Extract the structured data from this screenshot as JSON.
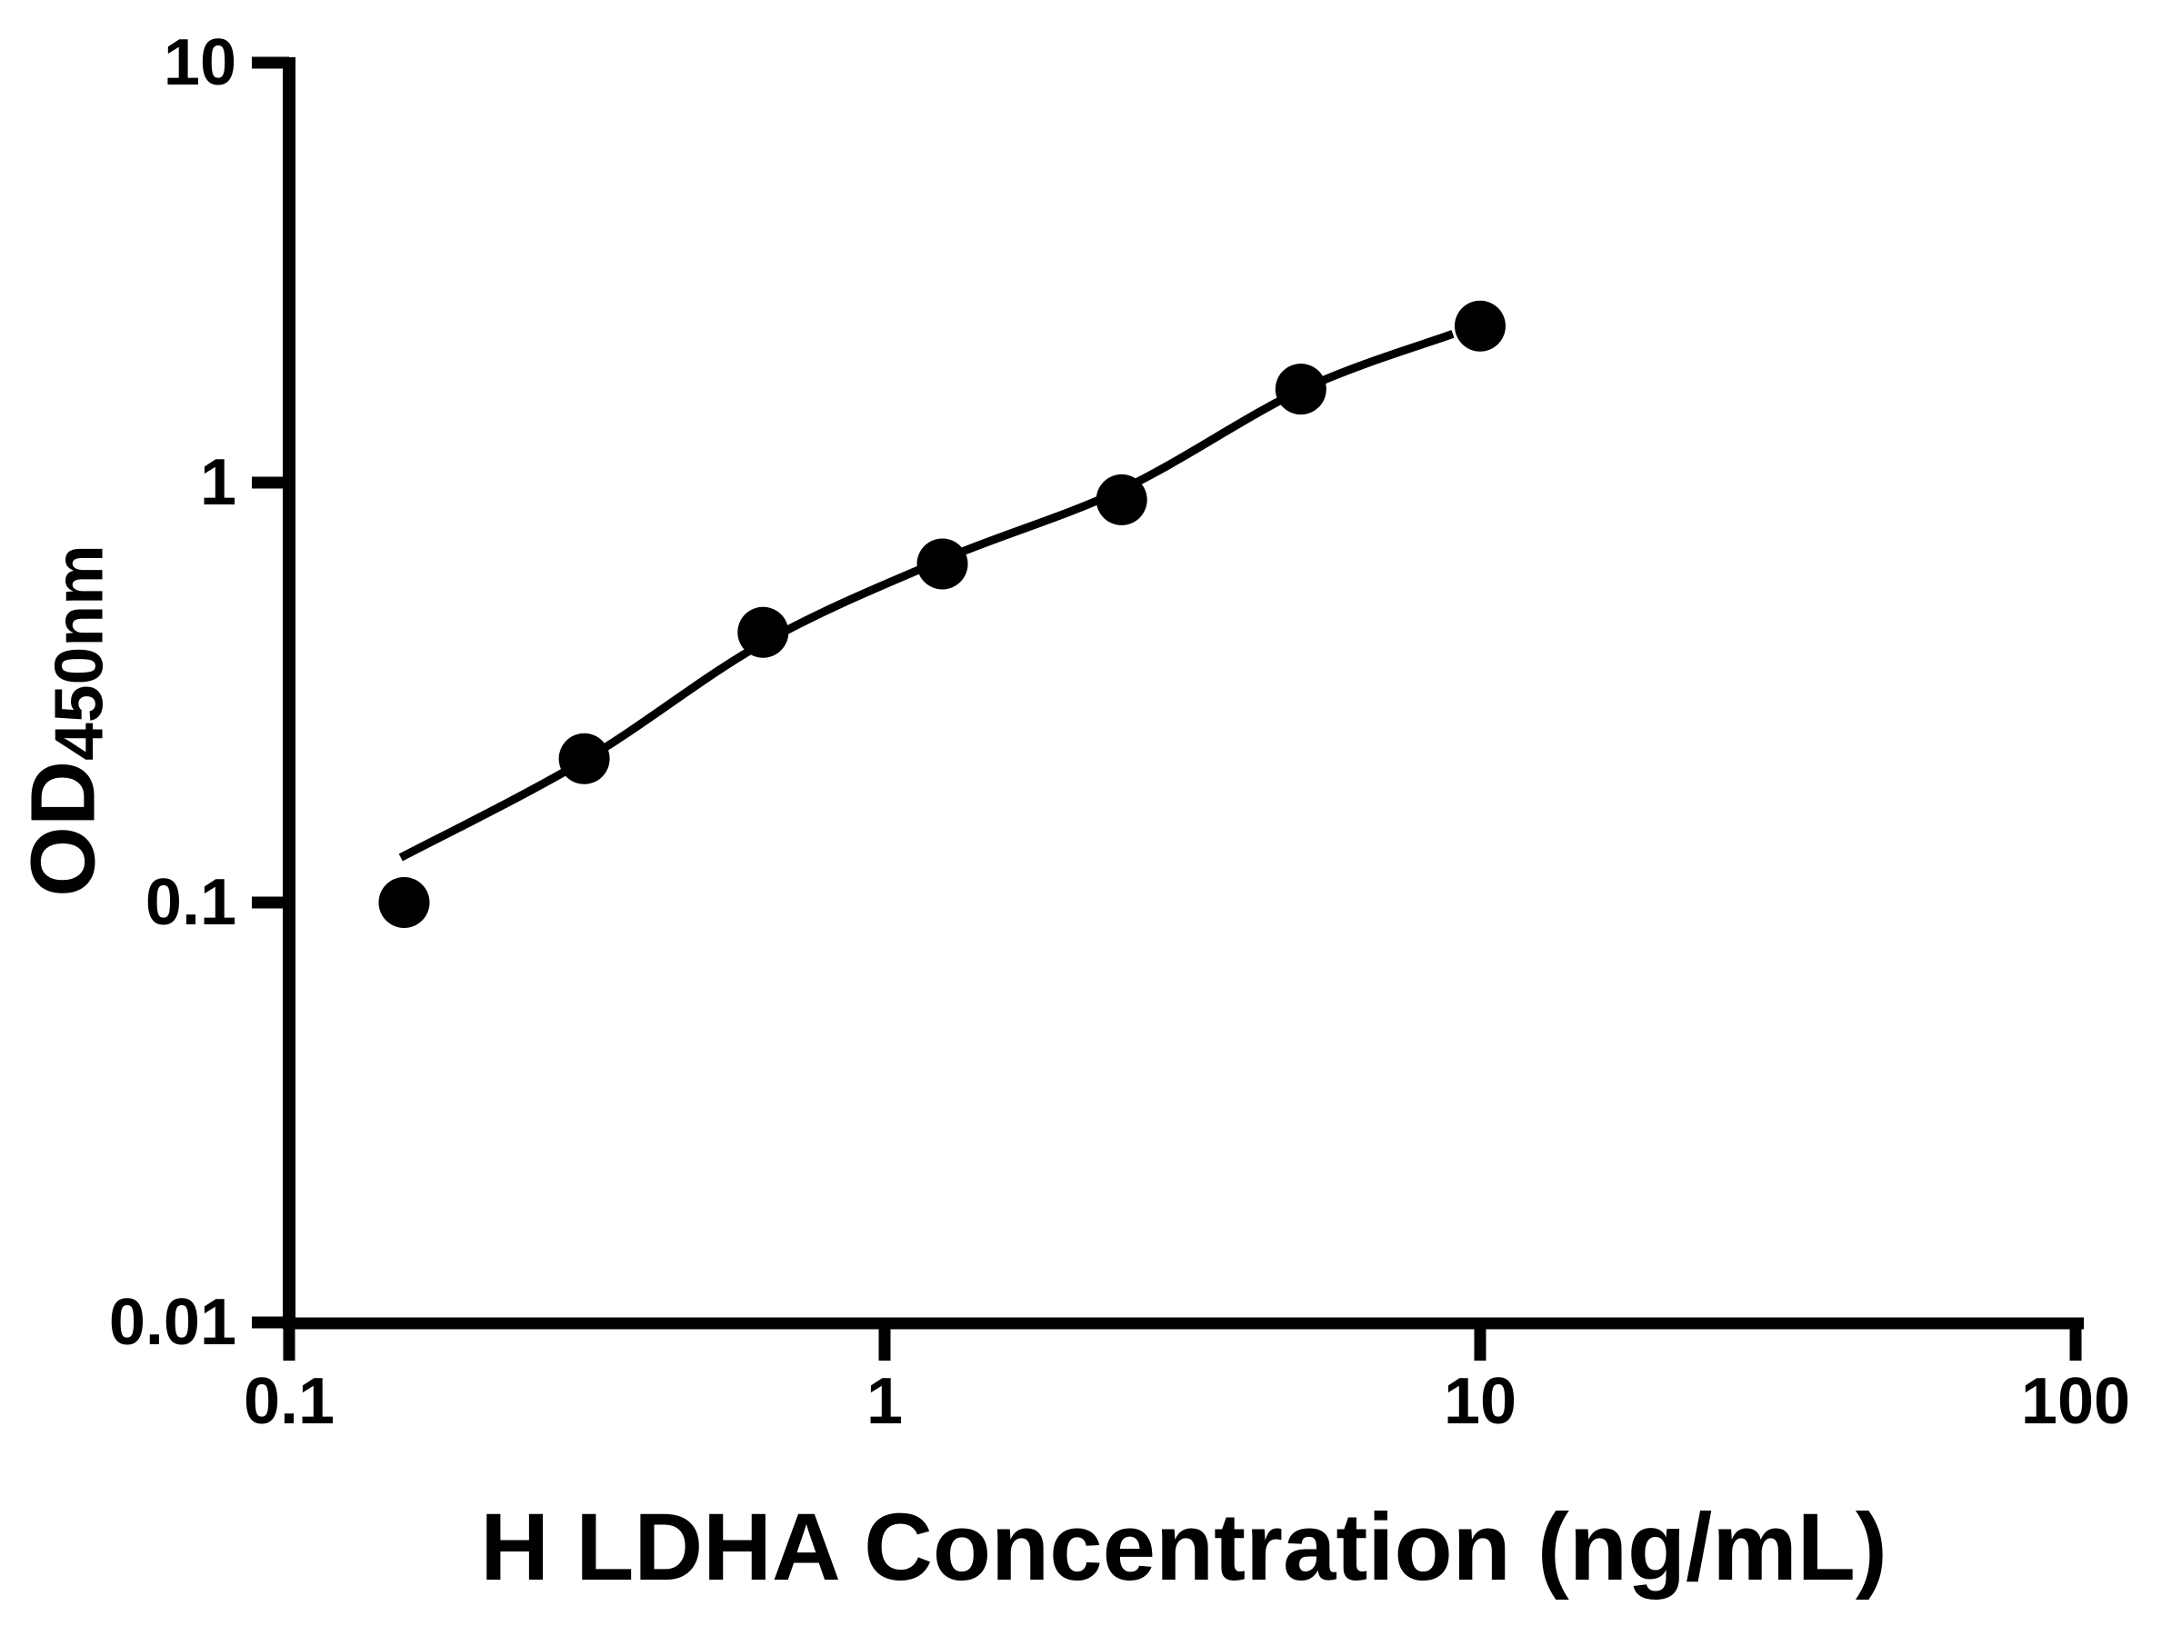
{
  "background_color": "#ffffff",
  "ink_color": "#000000",
  "chart_data": {
    "type": "scatter",
    "title": "",
    "grid": false,
    "legend": false,
    "x_axis": {
      "label": "H LDHA Concentration (ng/mL)",
      "scale": "log10",
      "range": [
        0.1,
        100
      ],
      "ticks": [
        {
          "value": 0.1,
          "label": "0.1"
        },
        {
          "value": 1,
          "label": "1"
        },
        {
          "value": 10,
          "label": "10"
        },
        {
          "value": 100,
          "label": "100"
        }
      ]
    },
    "y_axis": {
      "label_main": "OD",
      "label_sub": "450nm",
      "scale": "log10",
      "range": [
        0.01,
        10
      ],
      "ticks": [
        {
          "value": 10,
          "label": "10"
        },
        {
          "value": 1,
          "label": "1"
        },
        {
          "value": 0.1,
          "label": "0.1"
        },
        {
          "value": 0.01,
          "label": "0.01"
        }
      ]
    },
    "series": [
      {
        "name": "standard-points",
        "marker": "filled-circle",
        "color": "#000000",
        "points": [
          {
            "x": 0.156,
            "y": 0.1
          },
          {
            "x": 0.313,
            "y": 0.22
          },
          {
            "x": 0.625,
            "y": 0.44
          },
          {
            "x": 1.25,
            "y": 0.64
          },
          {
            "x": 2.5,
            "y": 0.91
          },
          {
            "x": 5,
            "y": 1.67
          },
          {
            "x": 10,
            "y": 2.36
          }
        ]
      }
    ],
    "fit_curve": {
      "name": "fitted-standard-curve",
      "color": "#000000",
      "points": [
        {
          "x": 0.154,
          "y": 0.128
        },
        {
          "x": 0.313,
          "y": 0.218
        },
        {
          "x": 0.625,
          "y": 0.415
        },
        {
          "x": 1.25,
          "y": 0.655
        },
        {
          "x": 2.5,
          "y": 0.962
        },
        {
          "x": 5,
          "y": 1.66
        },
        {
          "x": 9.0,
          "y": 2.26
        }
      ]
    }
  }
}
